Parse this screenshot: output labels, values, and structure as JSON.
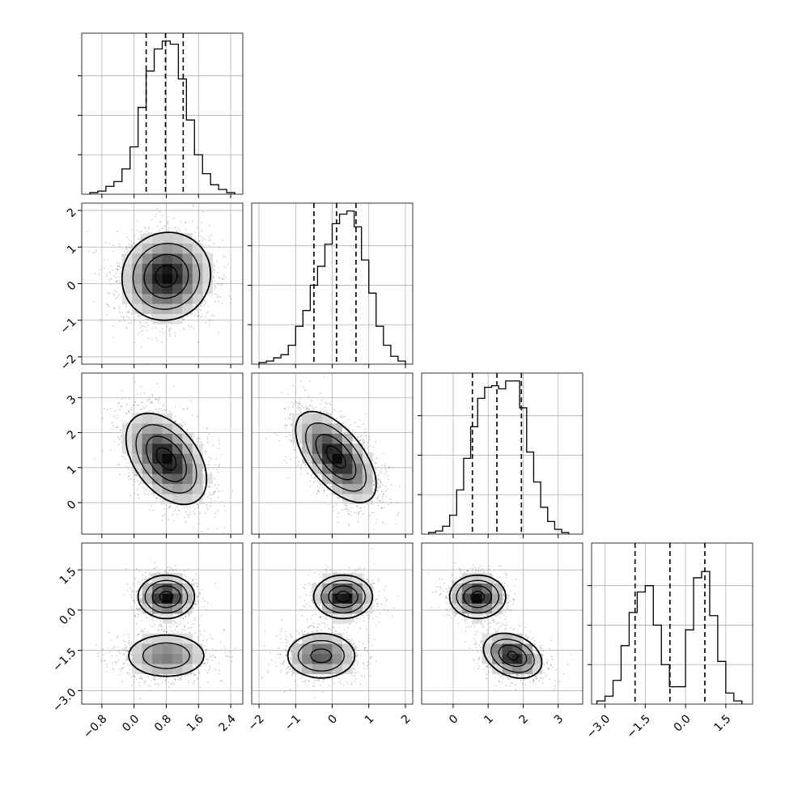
{
  "chart_data": {
    "type": "corner",
    "grid": true,
    "parameters": [
      {
        "name": "",
        "range": [
          -1.3,
          2.7
        ],
        "ticks": [
          -0.8,
          0.0,
          0.8,
          1.6,
          2.4
        ],
        "tick_labels": [
          "−0.8",
          "0.0",
          "0.8",
          "1.6",
          "2.4"
        ],
        "quantiles": [
          0.3,
          0.78,
          1.22
        ]
      },
      {
        "name": "",
        "range": [
          -2.2,
          2.2
        ],
        "ticks": [
          -2,
          -1,
          0,
          1,
          2
        ],
        "tick_labels": [
          "−2",
          "−1",
          "0",
          "1",
          "2"
        ],
        "quantiles": [
          -0.5,
          0.12,
          0.65
        ]
      },
      {
        "name": "",
        "range": [
          -0.9,
          3.7
        ],
        "ticks": [
          0,
          1,
          2,
          3
        ],
        "tick_labels": [
          "0",
          "1",
          "2",
          "3"
        ],
        "quantiles": [
          0.55,
          1.25,
          1.95
        ]
      },
      {
        "name": "",
        "range": [
          -3.5,
          2.5
        ],
        "ticks": [
          -3.0,
          -1.5,
          0.0,
          1.5
        ],
        "tick_labels": [
          "−3.0",
          "−1.5",
          "0.0",
          "1.5"
        ],
        "quantiles": [
          -1.88,
          -0.58,
          0.72
        ]
      }
    ],
    "histograms": [
      {
        "param": 0,
        "bin_edges": [
          -1.1,
          -0.9,
          -0.7,
          -0.5,
          -0.3,
          -0.1,
          0.1,
          0.3,
          0.5,
          0.7,
          0.9,
          1.1,
          1.3,
          1.5,
          1.7,
          1.9,
          2.1,
          2.3,
          2.5
        ],
        "counts": [
          0.01,
          0.02,
          0.05,
          0.08,
          0.16,
          0.3,
          0.55,
          0.78,
          0.92,
          0.97,
          0.95,
          0.73,
          0.47,
          0.25,
          0.13,
          0.06,
          0.03,
          0.01
        ],
        "yticks": [
          0.25,
          0.5,
          0.75
        ]
      },
      {
        "param": 1,
        "bin_edges": [
          -2.0,
          -1.8,
          -1.6,
          -1.4,
          -1.2,
          -1.0,
          -0.8,
          -0.6,
          -0.4,
          -0.2,
          0.0,
          0.2,
          0.4,
          0.6,
          0.8,
          1.0,
          1.2,
          1.4,
          1.6,
          1.8,
          2.0
        ],
        "counts": [
          0.01,
          0.02,
          0.04,
          0.06,
          0.12,
          0.24,
          0.34,
          0.5,
          0.62,
          0.76,
          0.89,
          0.95,
          0.97,
          0.87,
          0.66,
          0.45,
          0.24,
          0.12,
          0.05,
          0.02
        ],
        "yticks": [
          0.25,
          0.5,
          0.75
        ]
      },
      {
        "param": 2,
        "bin_edges": [
          -0.7,
          -0.5,
          -0.3,
          -0.1,
          0.1,
          0.3,
          0.5,
          0.7,
          0.9,
          1.1,
          1.3,
          1.5,
          1.7,
          1.9,
          2.1,
          2.3,
          2.5,
          2.7,
          2.9,
          3.1,
          3.3
        ],
        "counts": [
          0.01,
          0.02,
          0.05,
          0.12,
          0.28,
          0.48,
          0.68,
          0.86,
          0.93,
          0.94,
          0.92,
          0.97,
          0.97,
          0.8,
          0.52,
          0.33,
          0.17,
          0.08,
          0.03,
          0.01
        ],
        "yticks": [
          0.25,
          0.5,
          0.75
        ]
      },
      {
        "param": 3,
        "bin_edges": [
          -3.3,
          -3.0,
          -2.7,
          -2.4,
          -2.1,
          -1.8,
          -1.5,
          -1.2,
          -0.9,
          -0.6,
          -0.3,
          0.0,
          0.3,
          0.6,
          0.9,
          1.2,
          1.5,
          1.8,
          2.1
        ],
        "counts": [
          0.02,
          0.05,
          0.15,
          0.37,
          0.58,
          0.71,
          0.75,
          0.5,
          0.25,
          0.11,
          0.11,
          0.47,
          0.8,
          0.84,
          0.56,
          0.27,
          0.07,
          0.02
        ],
        "yticks": [
          0.25,
          0.5,
          0.75
        ]
      }
    ],
    "pairs": [
      {
        "x": 0,
        "y": 1,
        "components": [
          {
            "mean": [
              0.8,
              0.2
            ],
            "sd": [
              0.55,
              0.6
            ],
            "rho": 0.05,
            "weight": 1
          }
        ]
      },
      {
        "x": 0,
        "y": 2,
        "components": [
          {
            "mean": [
              0.8,
              1.25
            ],
            "sd": [
              0.5,
              0.65
            ],
            "rho": -0.45,
            "weight": 1
          }
        ]
      },
      {
        "x": 1,
        "y": 2,
        "components": [
          {
            "mean": [
              0.1,
              1.3
            ],
            "sd": [
              0.55,
              0.65
            ],
            "rho": -0.6,
            "weight": 1
          }
        ]
      },
      {
        "x": 0,
        "y": 3,
        "components": [
          {
            "mean": [
              0.8,
              0.5
            ],
            "sd": [
              0.35,
              0.4
            ],
            "rho": 0.0,
            "weight": 0.5
          },
          {
            "mean": [
              0.8,
              -1.7
            ],
            "sd": [
              0.55,
              0.45
            ],
            "rho": 0.0,
            "weight": 0.5
          }
        ]
      },
      {
        "x": 1,
        "y": 3,
        "components": [
          {
            "mean": [
              0.3,
              0.5
            ],
            "sd": [
              0.4,
              0.4
            ],
            "rho": 0.0,
            "weight": 0.5
          },
          {
            "mean": [
              -0.3,
              -1.7
            ],
            "sd": [
              0.5,
              0.45
            ],
            "rho": 0.0,
            "weight": 0.5
          }
        ]
      },
      {
        "x": 2,
        "y": 3,
        "components": [
          {
            "mean": [
              0.7,
              0.5
            ],
            "sd": [
              0.4,
              0.4
            ],
            "rho": 0.0,
            "weight": 0.5
          },
          {
            "mean": [
              1.7,
              -1.7
            ],
            "sd": [
              0.42,
              0.42
            ],
            "rho": -0.3,
            "weight": 0.5
          }
        ]
      }
    ],
    "contour_levels_sigma": [
      0.5,
      1.0,
      1.5,
      2.0
    ]
  }
}
